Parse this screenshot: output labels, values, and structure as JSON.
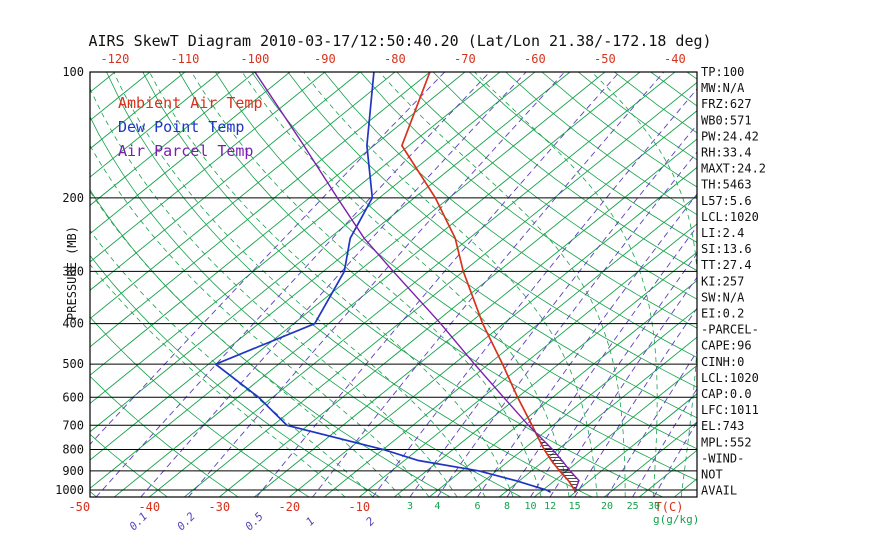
{
  "title": "AIRS SkewT Diagram 2010-03-17/12:50:40.20 (Lat/Lon 21.38/-172.18 deg)",
  "legend": [
    {
      "label": "Ambient Air Temp",
      "color": "#d8321e"
    },
    {
      "label": "Dew Point Temp",
      "color": "#1f35c5"
    },
    {
      "label": "Air Parcel Temp",
      "color": "#7a1fae"
    }
  ],
  "axes": {
    "pressure_label": "PRESSURE (MB)",
    "pressure_ticks": [
      100,
      200,
      300,
      400,
      500,
      600,
      700,
      800,
      900,
      1000
    ],
    "top_temp_ticks": [
      -120,
      -110,
      -100,
      -90,
      -80,
      -70,
      -60,
      -50,
      -40
    ],
    "bottom_temp_ticks": [
      -50,
      -40,
      -30,
      -20,
      -10
    ],
    "temp_unit_label": "T(C)",
    "mixratio_rotated_ticks": [
      0.1,
      0.2,
      0.5,
      1,
      2
    ],
    "mixratio_upright_ticks": [
      3,
      4,
      6,
      8,
      10,
      12,
      15,
      20,
      25,
      30
    ],
    "mixratio_unit_label": "g(g/kg)"
  },
  "stats_panel": [
    "TP:100",
    "MW:N/A",
    "FRZ:627",
    "WB0:571",
    "PW:24.42",
    "RH:33.4",
    "MAXT:24.2",
    "TH:5463",
    "L57:5.6",
    "LCL:1020",
    "LI:2.4",
    "SI:13.6",
    "TT:27.4",
    "KI:257",
    "SW:N/A",
    "EI:0.2",
    "-PARCEL-",
    "CAPE:96",
    "CINH:0",
    "LCL:1020",
    "CAP:0.0",
    "LFC:1011",
    "EL:743",
    "MPL:552",
    "-WIND-",
    "NOT",
    "AVAIL"
  ],
  "colors": {
    "background": "#ffffff",
    "frame": "#000000",
    "grid_green": "#15a24b",
    "mixing_purple": "#5b3fc0",
    "tick_red": "#d8321e",
    "text_black": "#111111"
  },
  "chart_data": {
    "type": "line",
    "title": "AIRS SkewT Diagram 2010-03-17/12:50:40.20 (Lat/Lon 21.38/-172.18 deg)",
    "x_axis": "Temperature (C), skewed 45deg",
    "y_axis": "Pressure (MB), log scale",
    "pressure_range_mb": [
      100,
      1040
    ],
    "top_axis_temp_range_C": [
      -120,
      -40
    ],
    "grid": {
      "isotherm_step_C": 5,
      "dry_adiabat_step_C": 10,
      "mixratio_gridlines_gkg": [
        0.02,
        0.05,
        0.1,
        0.2,
        0.5,
        1,
        2,
        3,
        4,
        6,
        8,
        10,
        12,
        15,
        20,
        25,
        30
      ]
    },
    "pressure_levels": [
      100,
      150,
      200,
      250,
      300,
      400,
      500,
      600,
      700,
      800,
      850,
      900,
      950,
      1000,
      1013
    ],
    "series": [
      {
        "name": "Ambient Air Temp",
        "color": "#d8321e",
        "values": [
          -75,
          -66,
          -52,
          -42,
          -35,
          -23,
          -13,
          -5,
          2,
          8,
          11,
          14,
          17,
          19.5,
          20
        ]
      },
      {
        "name": "Dew Point Temp",
        "color": "#1f35c5",
        "values": [
          -83,
          -71,
          -61,
          -57,
          -52,
          -47,
          -54,
          -42,
          -33,
          -15,
          -8,
          2.5,
          9.5,
          15.5,
          16.5
        ]
      },
      {
        "name": "Air Parcel Temp",
        "color": "#7a1fae",
        "values": [
          -100,
          -80,
          -66,
          -55,
          -45,
          -29,
          -17,
          -7,
          1.5,
          9.2,
          12.5,
          15.5,
          18.5,
          19.6,
          20
        ]
      }
    ],
    "cape_jkg": 96,
    "hatch_region": {
      "from_mb": 1013,
      "to_mb": 745,
      "between": [
        "Air Parcel Temp",
        "Ambient Air Temp"
      ]
    }
  }
}
